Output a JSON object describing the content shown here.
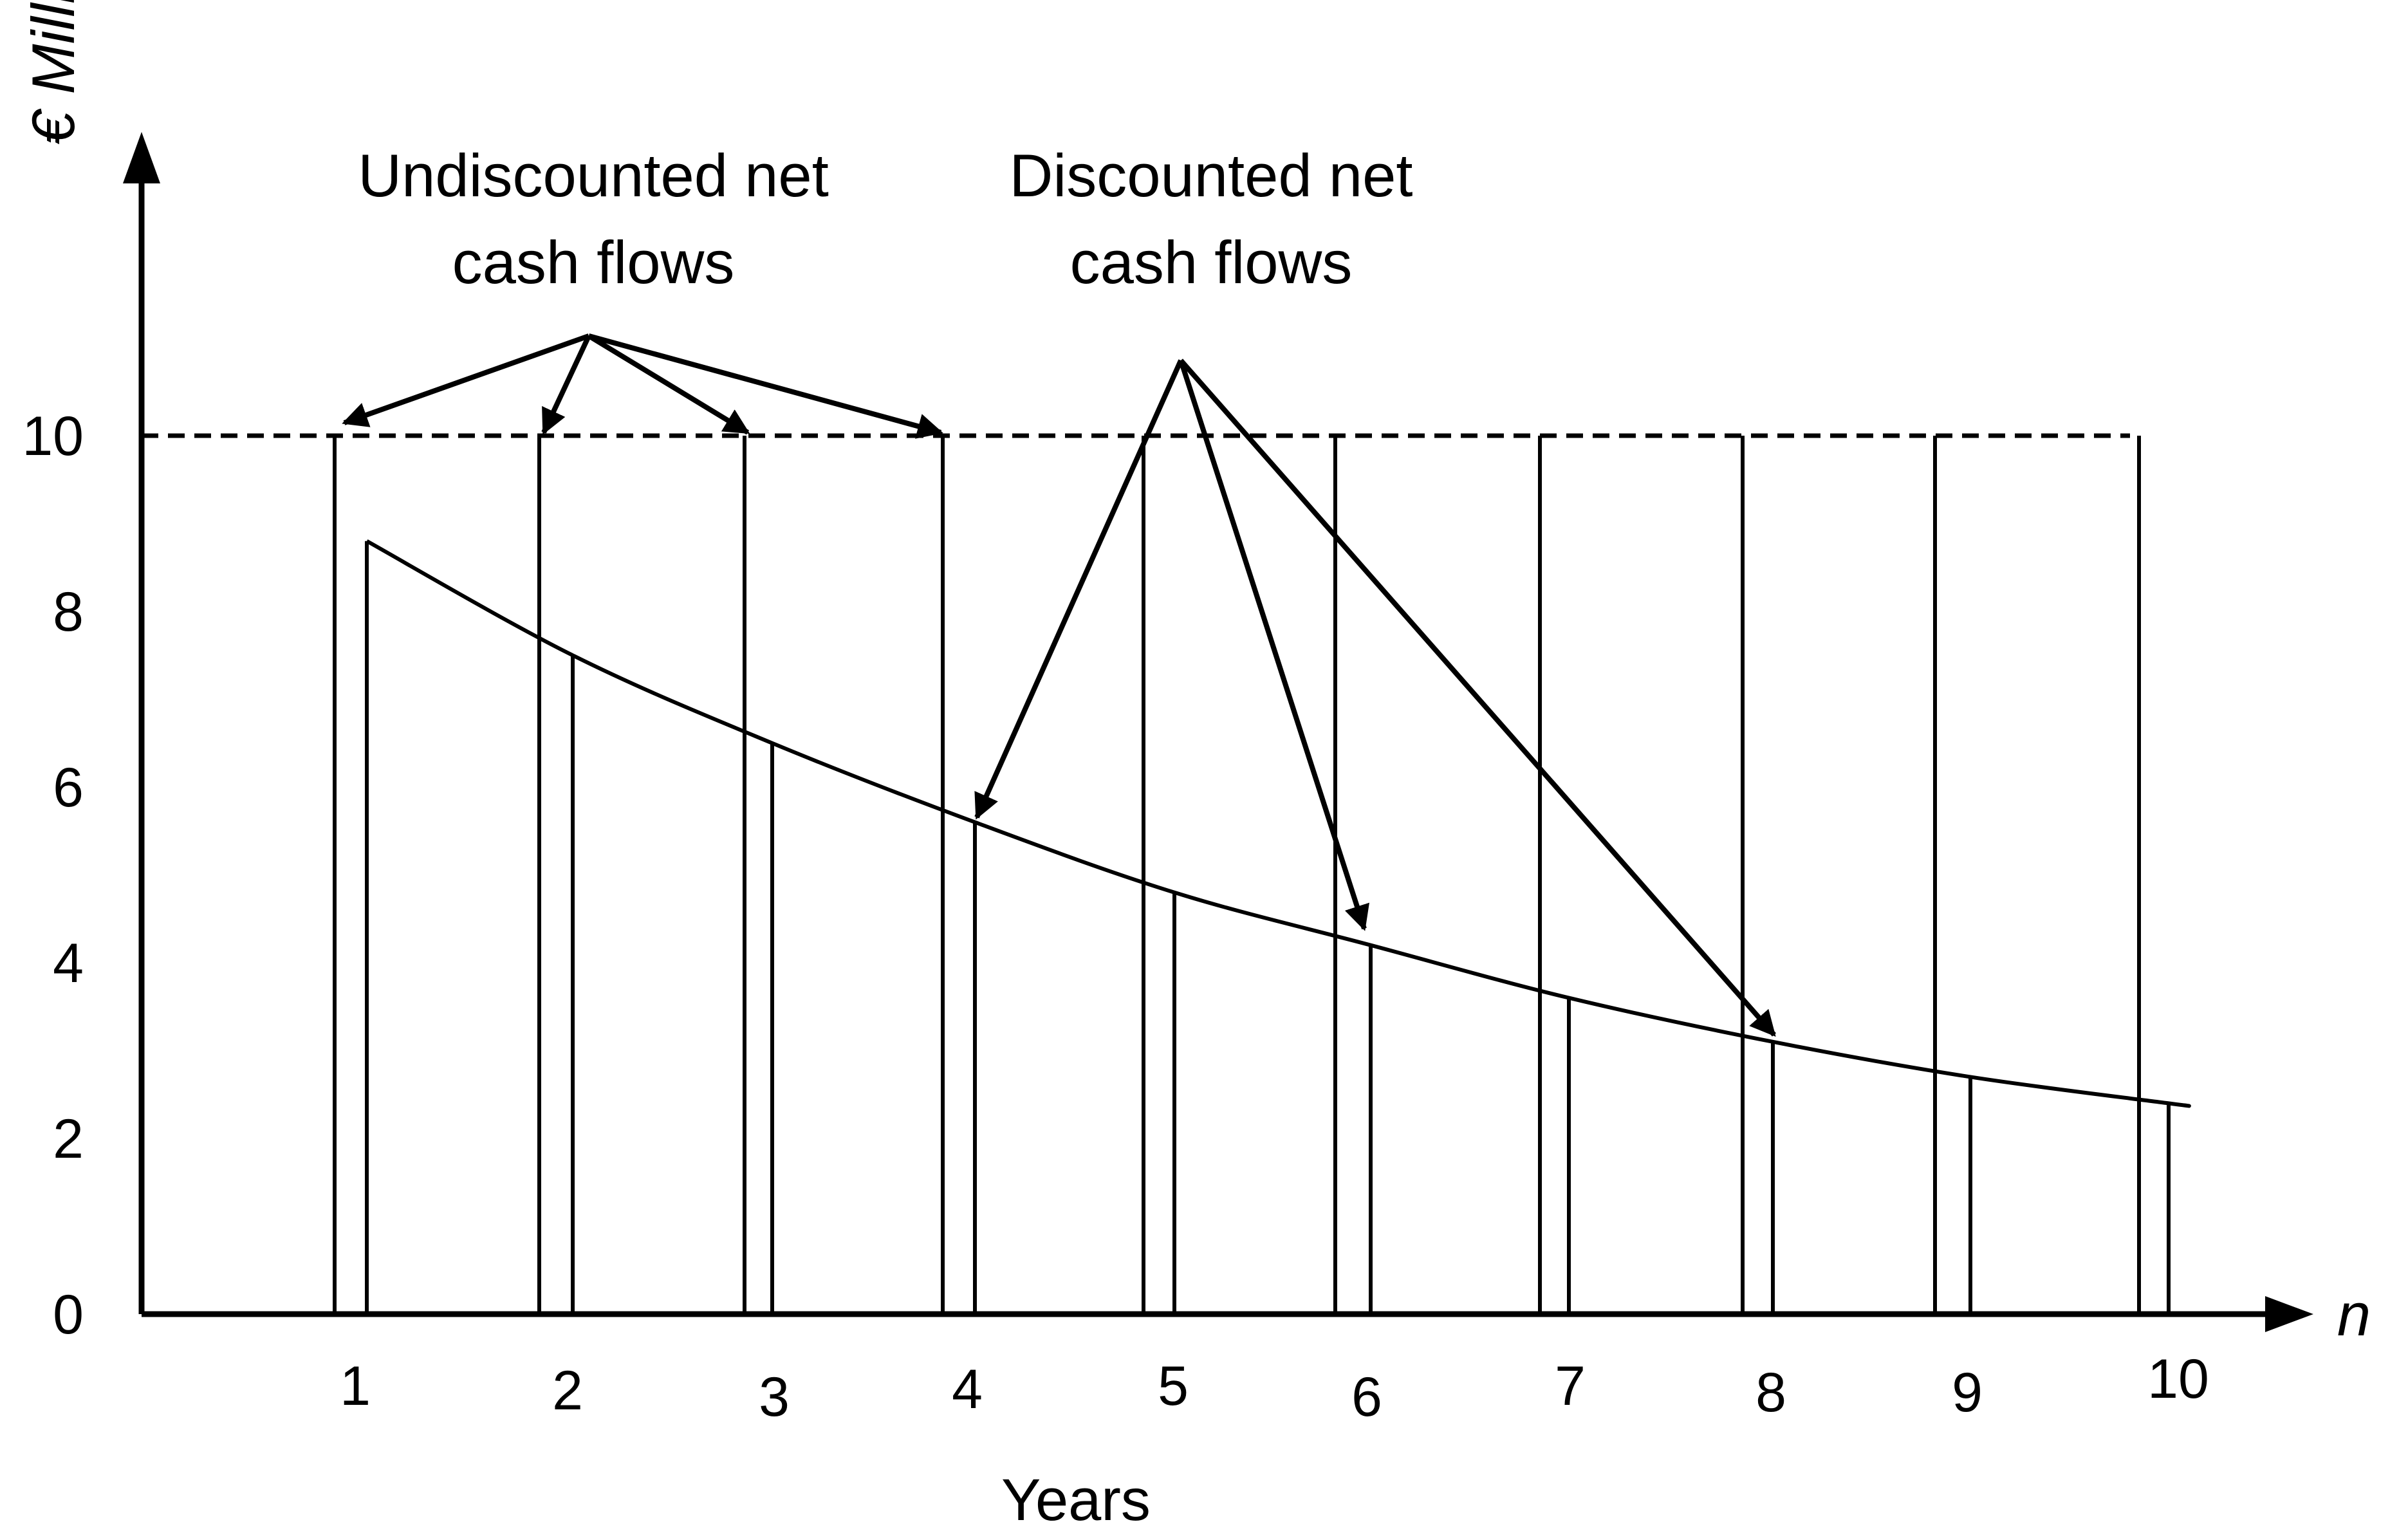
{
  "chart_data": {
    "type": "bar",
    "ylabel": "€ Million",
    "xlabel": "Years",
    "x_end_label": "n",
    "categories": [
      "1",
      "2",
      "3",
      "4",
      "5",
      "6",
      "7",
      "8",
      "9",
      "10"
    ],
    "yticks": [
      "0",
      "2",
      "4",
      "6",
      "8",
      "10"
    ],
    "ylim": [
      0,
      13
    ],
    "series": [
      {
        "name": "Undiscounted net cash flows",
        "values": [
          10,
          10,
          10,
          10,
          10,
          10,
          10,
          10,
          10,
          10
        ]
      },
      {
        "name": "Discounted net cash flows",
        "values": [
          8.8,
          7.5,
          6.5,
          5.6,
          4.8,
          4.2,
          3.6,
          3.1,
          2.7,
          2.4
        ]
      }
    ],
    "reference_line": {
      "y": 10,
      "style": "dashed"
    },
    "annotations": [
      {
        "lines": [
          "Undiscounted net",
          "cash flows"
        ],
        "series": 0,
        "points_to": [
          1,
          2,
          3,
          4
        ]
      },
      {
        "lines": [
          "Discounted net",
          "cash flows"
        ],
        "series": 1,
        "points_to": [
          4,
          6,
          8
        ]
      }
    ],
    "colors": {
      "line": "#000000",
      "background": "#ffffff"
    }
  }
}
